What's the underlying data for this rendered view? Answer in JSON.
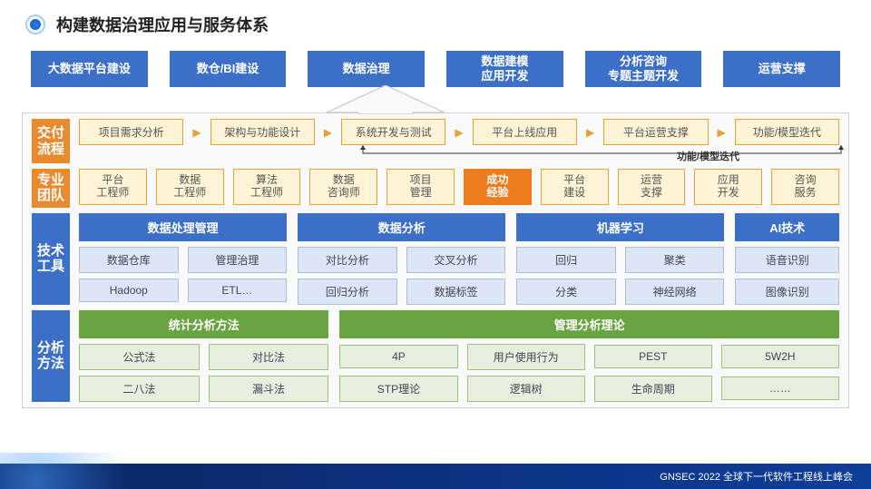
{
  "title": "构建数据治理应用与服务体系",
  "top": [
    "大数据平台建设",
    "数仓/BI建设",
    "数据治理",
    "数据建模\n应用开发",
    "分析咨询\n专题主题开发",
    "运营支撑"
  ],
  "colors": {
    "top_bg": "#3b6fc8",
    "label_orange": "#e98a2e",
    "label_blue": "#3b6fc8",
    "chip_yellow_bg": "#fff4d6",
    "chip_yellow_border": "#e7a13a",
    "chip_orange": "#ef7b1f",
    "chip_blue_header": "#3b6fc8",
    "chip_blue_light_bg": "#dce6f5",
    "chip_blue_light_border": "#a7bfe2",
    "chip_green_header": "#6aa341",
    "chip_green_light_bg": "#e7f0de",
    "chip_green_light_border": "#9cc27d",
    "panel_border": "#d0d0d0",
    "panel_bg": "#fafafa",
    "footer_bg": "#0a2a6b"
  },
  "row1": {
    "label": "交付\n流程",
    "steps": [
      "项目需求分析",
      "架构与功能设计",
      "系统开发与测试",
      "平台上线应用",
      "平台运营支撑",
      "功能/模型迭代"
    ],
    "feedback": "功能/模型迭代"
  },
  "row2": {
    "label": "专业\n团队",
    "items": [
      "平台\n工程师",
      "数据\n工程师",
      "算法\n工程师",
      "数据\n咨询师",
      "项目\n管理",
      "成功\n经验",
      "平台\n建设",
      "运营\n支撑",
      "应用\n开发",
      "咨询\n服务"
    ],
    "highlight_index": 5
  },
  "row3": {
    "label": "技术\n工具",
    "groups": [
      {
        "title": "数据处理管理",
        "items": [
          [
            "数据仓库",
            "管理治理"
          ],
          [
            "Hadoop",
            "ETL…"
          ]
        ]
      },
      {
        "title": "数据分析",
        "items": [
          [
            "对比分析",
            "交叉分析"
          ],
          [
            "回归分析",
            "数据标签"
          ]
        ]
      },
      {
        "title": "机器学习",
        "items": [
          [
            "回归",
            "聚类"
          ],
          [
            "分类",
            "神经网络"
          ]
        ]
      },
      {
        "title": "AI技术",
        "items": [
          [
            "语音识别"
          ],
          [
            "图像识别"
          ]
        ]
      }
    ]
  },
  "row4": {
    "label": "分析\n方法",
    "groups": [
      {
        "title": "统计分析方法",
        "items": [
          [
            "公式法",
            "对比法"
          ],
          [
            "二八法",
            "漏斗法"
          ]
        ]
      },
      {
        "title": "管理分析理论",
        "items": [
          [
            "4P",
            "用户使用行为",
            "PEST",
            "5W2H"
          ],
          [
            "STP理论",
            "逻辑树",
            "生命周期",
            "……"
          ]
        ]
      }
    ]
  },
  "footer": "GNSEC 2022 全球下一代软件工程线上峰会"
}
